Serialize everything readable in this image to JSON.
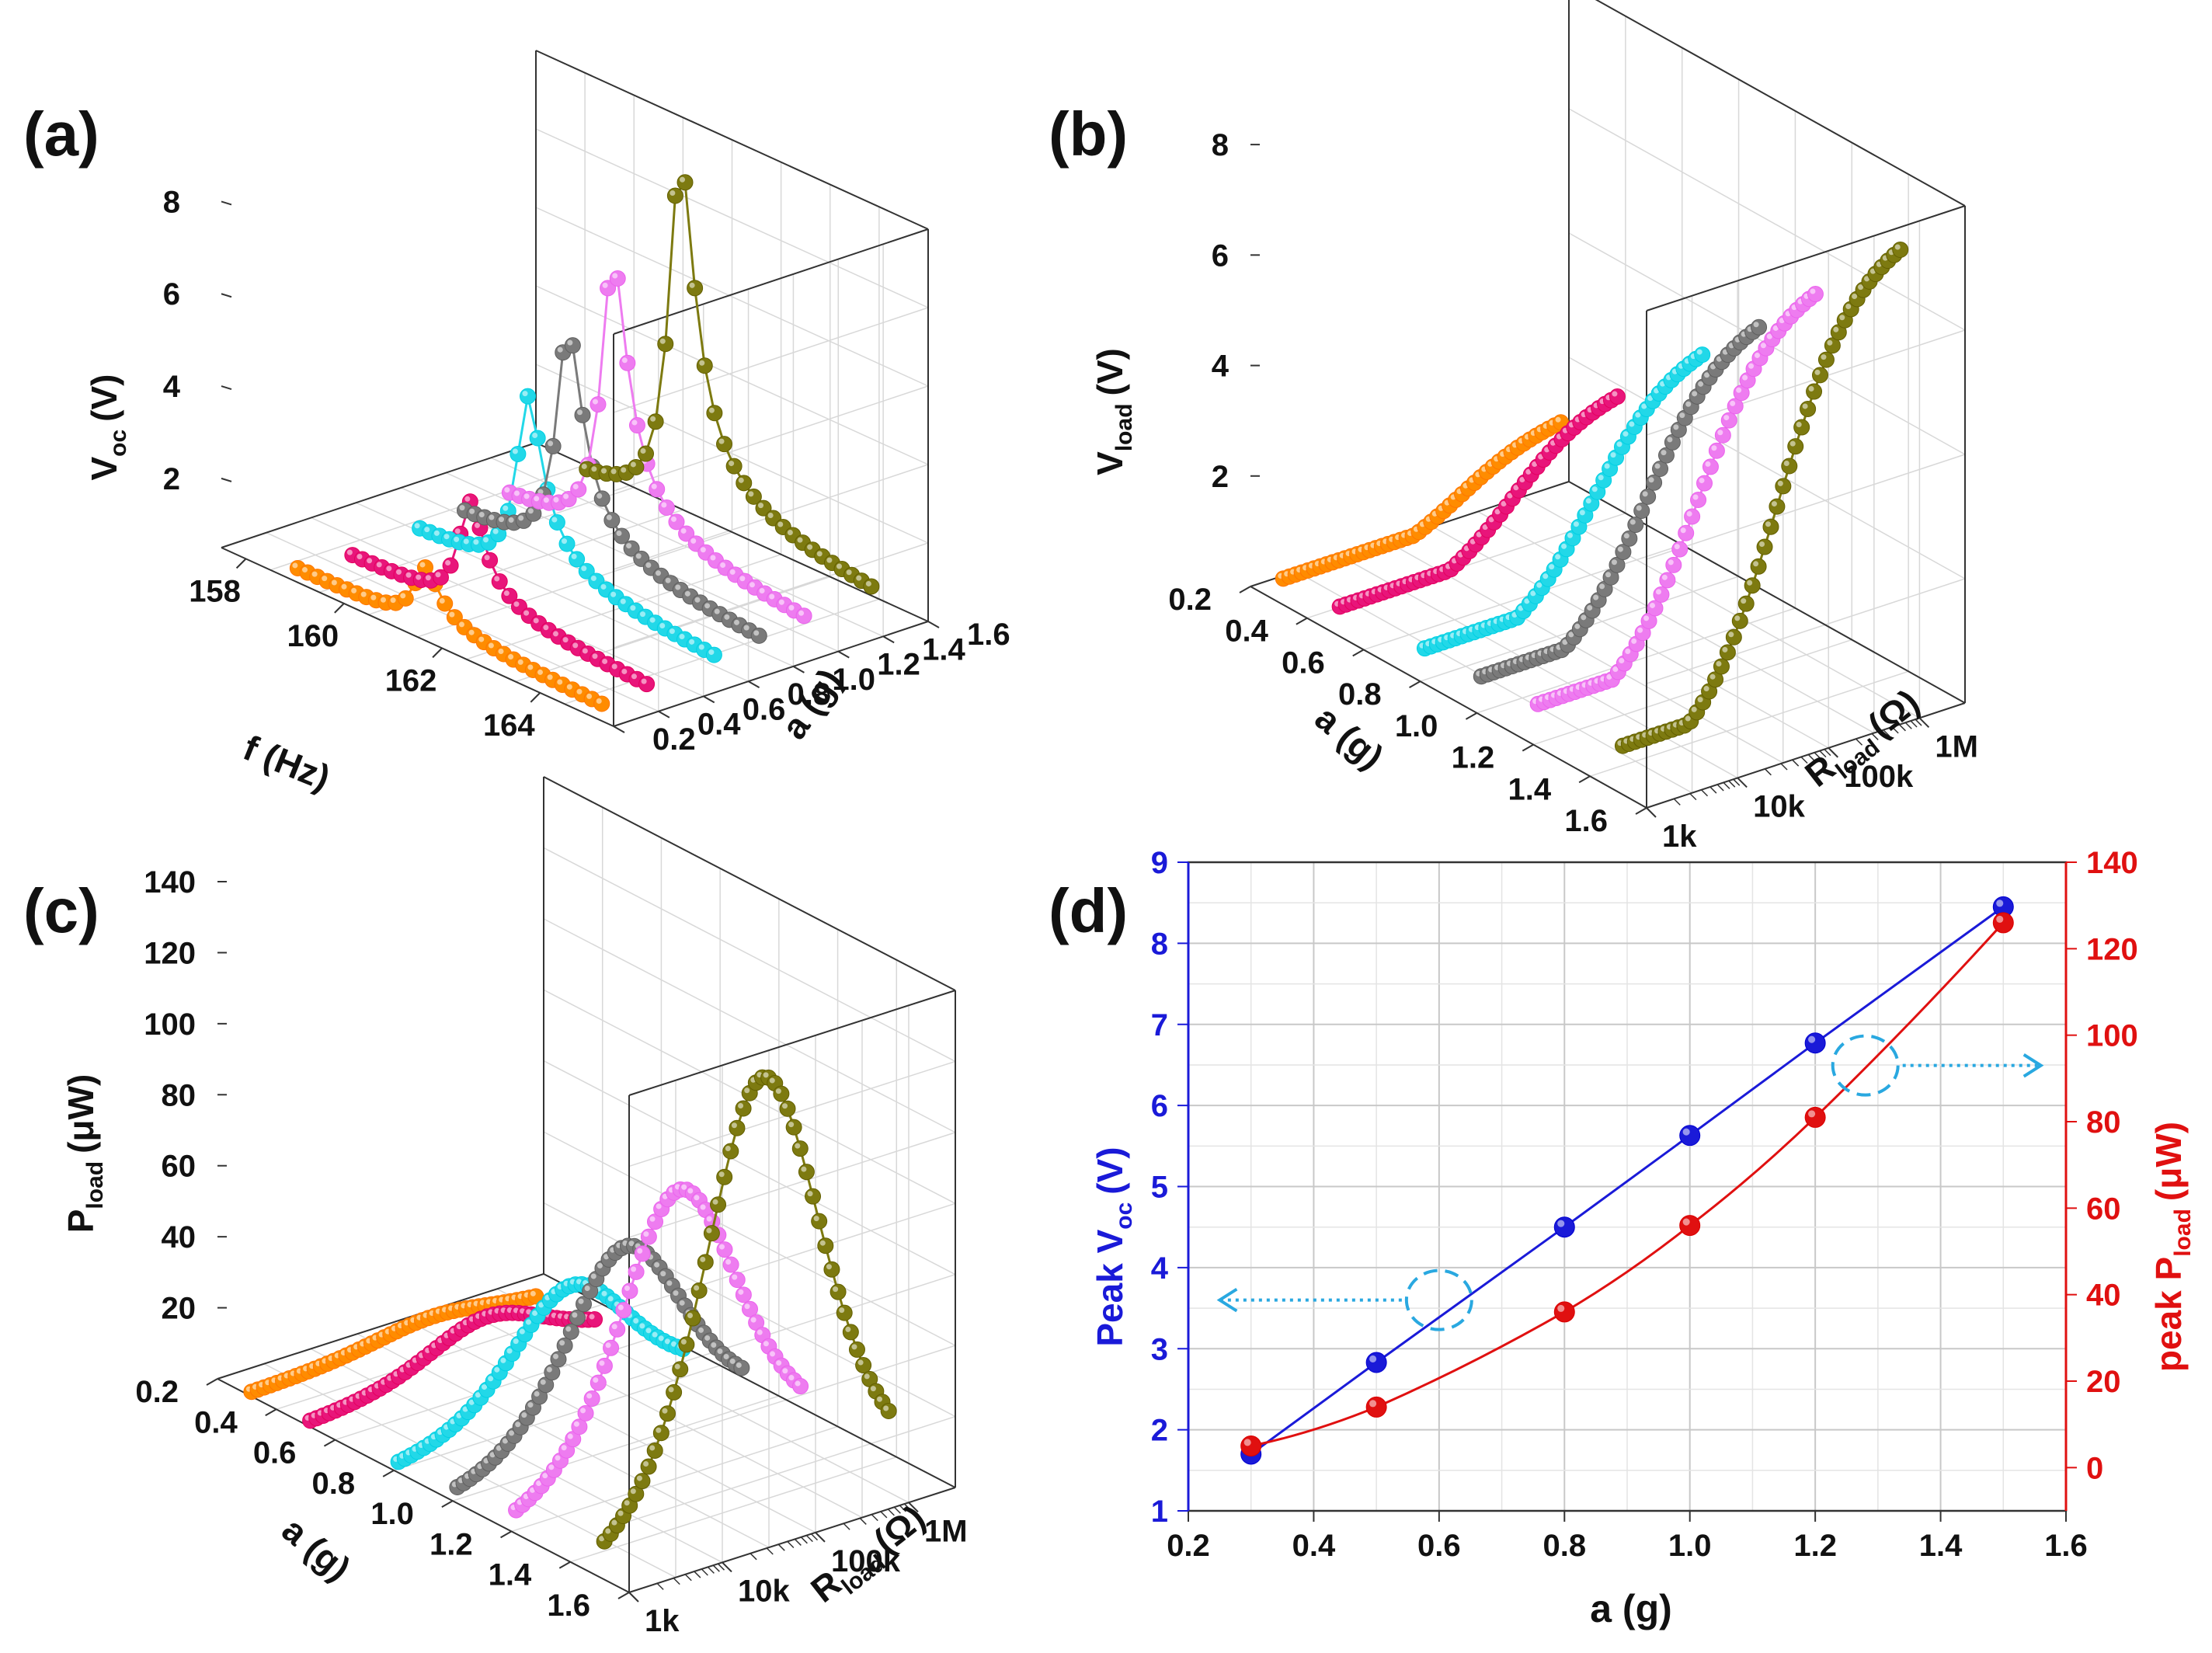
{
  "panels": {
    "a": "(a)",
    "b": "(b)",
    "c": "(c)",
    "d": "(d)"
  },
  "colors": {
    "series": [
      "#ff8c00",
      "#e8157a",
      "#22d8e8",
      "#7a7a7a",
      "#ee7cf0",
      "#7d7a10"
    ],
    "voc": "#1a1ad8",
    "power": "#e01010",
    "arrow": "#29a8e0"
  },
  "chart_data": [
    {
      "id": "a",
      "type": "line",
      "projection": "3d",
      "xlabel": "f (Hz)",
      "ylabel": "a (g)",
      "zlabel_main": "V",
      "zlabel_sub": "oc",
      "zlabel_unit": "(V)",
      "x_ticks": [
        "158",
        "160",
        "162",
        "164"
      ],
      "y_ticks": [
        "0.2",
        "0.4",
        "0.6",
        "0.8",
        "1.0",
        "1.2",
        "1.4",
        "1.6"
      ],
      "z_ticks": [
        "2",
        "4",
        "6",
        "8"
      ],
      "xlim": [
        157.5,
        165.5
      ],
      "ylim": [
        0.2,
        1.6
      ],
      "zlim": [
        0.5,
        9
      ],
      "series": [
        {
          "a": 0.3,
          "f0": 161.2,
          "peak": 1.7
        },
        {
          "a": 0.5,
          "f0": 161.2,
          "peak": 2.8
        },
        {
          "a": 0.8,
          "f0": 161.0,
          "peak": 4.5
        },
        {
          "a": 1.0,
          "f0": 160.9,
          "peak": 5.6
        },
        {
          "a": 1.2,
          "f0": 160.9,
          "peak": 6.8
        },
        {
          "a": 1.5,
          "f0": 160.9,
          "peak": 8.5
        }
      ]
    },
    {
      "id": "b",
      "type": "line",
      "projection": "3d",
      "xlabel": "a (g)",
      "ylabel_main": "R",
      "ylabel_sub": "load",
      "ylabel_unit": "(Ω)",
      "zlabel_main": "V",
      "zlabel_sub": "load",
      "zlabel_unit": "(V)",
      "x_ticks": [
        "0.2",
        "0.4",
        "0.6",
        "0.8",
        "1.0",
        "1.2",
        "1.4",
        "1.6"
      ],
      "y_ticks": [
        "1k",
        "10k",
        "100k",
        "1M"
      ],
      "z_ticks": [
        "2",
        "4",
        "6",
        "8"
      ],
      "ylim_log10": [
        3,
        6.5
      ],
      "zlim": [
        0,
        9
      ],
      "series": [
        {
          "a": 0.3,
          "vmax": 1.7
        },
        {
          "a": 0.5,
          "vmax": 2.8
        },
        {
          "a": 0.8,
          "vmax": 4.5
        },
        {
          "a": 1.0,
          "vmax": 5.6
        },
        {
          "a": 1.2,
          "vmax": 6.8
        },
        {
          "a": 1.5,
          "vmax": 8.5
        }
      ]
    },
    {
      "id": "c",
      "type": "line",
      "projection": "3d",
      "xlabel": "a (g)",
      "ylabel_main": "R",
      "ylabel_sub": "load",
      "ylabel_unit": "(Ω)",
      "zlabel_main": "P",
      "zlabel_sub": "load",
      "zlabel_unit": "(μW)",
      "x_ticks": [
        "0.2",
        "0.4",
        "0.6",
        "0.8",
        "1.0",
        "1.2",
        "1.4",
        "1.6"
      ],
      "y_ticks": [
        "1k",
        "10k",
        "100k",
        "1M"
      ],
      "z_ticks": [
        "20",
        "40",
        "60",
        "80",
        "100",
        "120",
        "140"
      ],
      "ylim_log10": [
        3,
        6.5
      ],
      "zlim": [
        0,
        140
      ],
      "series": [
        {
          "a": 0.3,
          "pmax": 5
        },
        {
          "a": 0.5,
          "pmax": 14
        },
        {
          "a": 0.8,
          "pmax": 36
        },
        {
          "a": 1.0,
          "pmax": 56
        },
        {
          "a": 1.2,
          "pmax": 81
        },
        {
          "a": 1.5,
          "pmax": 126
        }
      ]
    },
    {
      "id": "d",
      "type": "line",
      "xlabel": "a (g)",
      "ylabel_left_main": "Peak  V",
      "ylabel_left_sub": "oc",
      "ylabel_left_unit": "(V)",
      "ylabel_right_main": "peak  P",
      "ylabel_right_sub": "load",
      "ylabel_right_unit": "(μW)",
      "x": [
        0.3,
        0.5,
        0.8,
        1.0,
        1.2,
        1.5
      ],
      "xlim": [
        0.2,
        1.6
      ],
      "x_ticks": [
        "0.2",
        "0.4",
        "0.6",
        "0.8",
        "1.0",
        "1.2",
        "1.4",
        "1.6"
      ],
      "ylim_left": [
        1,
        9
      ],
      "left_ticks": [
        "1",
        "2",
        "3",
        "4",
        "5",
        "6",
        "7",
        "8",
        "9"
      ],
      "ylim_right": [
        -10,
        140
      ],
      "right_ticks": [
        "0",
        "20",
        "40",
        "60",
        "80",
        "100",
        "120",
        "140"
      ],
      "grid": true,
      "series": [
        {
          "axis": "left",
          "values": [
            1.7,
            2.83,
            4.5,
            5.63,
            6.77,
            8.45
          ]
        },
        {
          "axis": "right",
          "values": [
            5,
            14,
            36,
            56,
            81,
            126
          ]
        }
      ]
    }
  ]
}
